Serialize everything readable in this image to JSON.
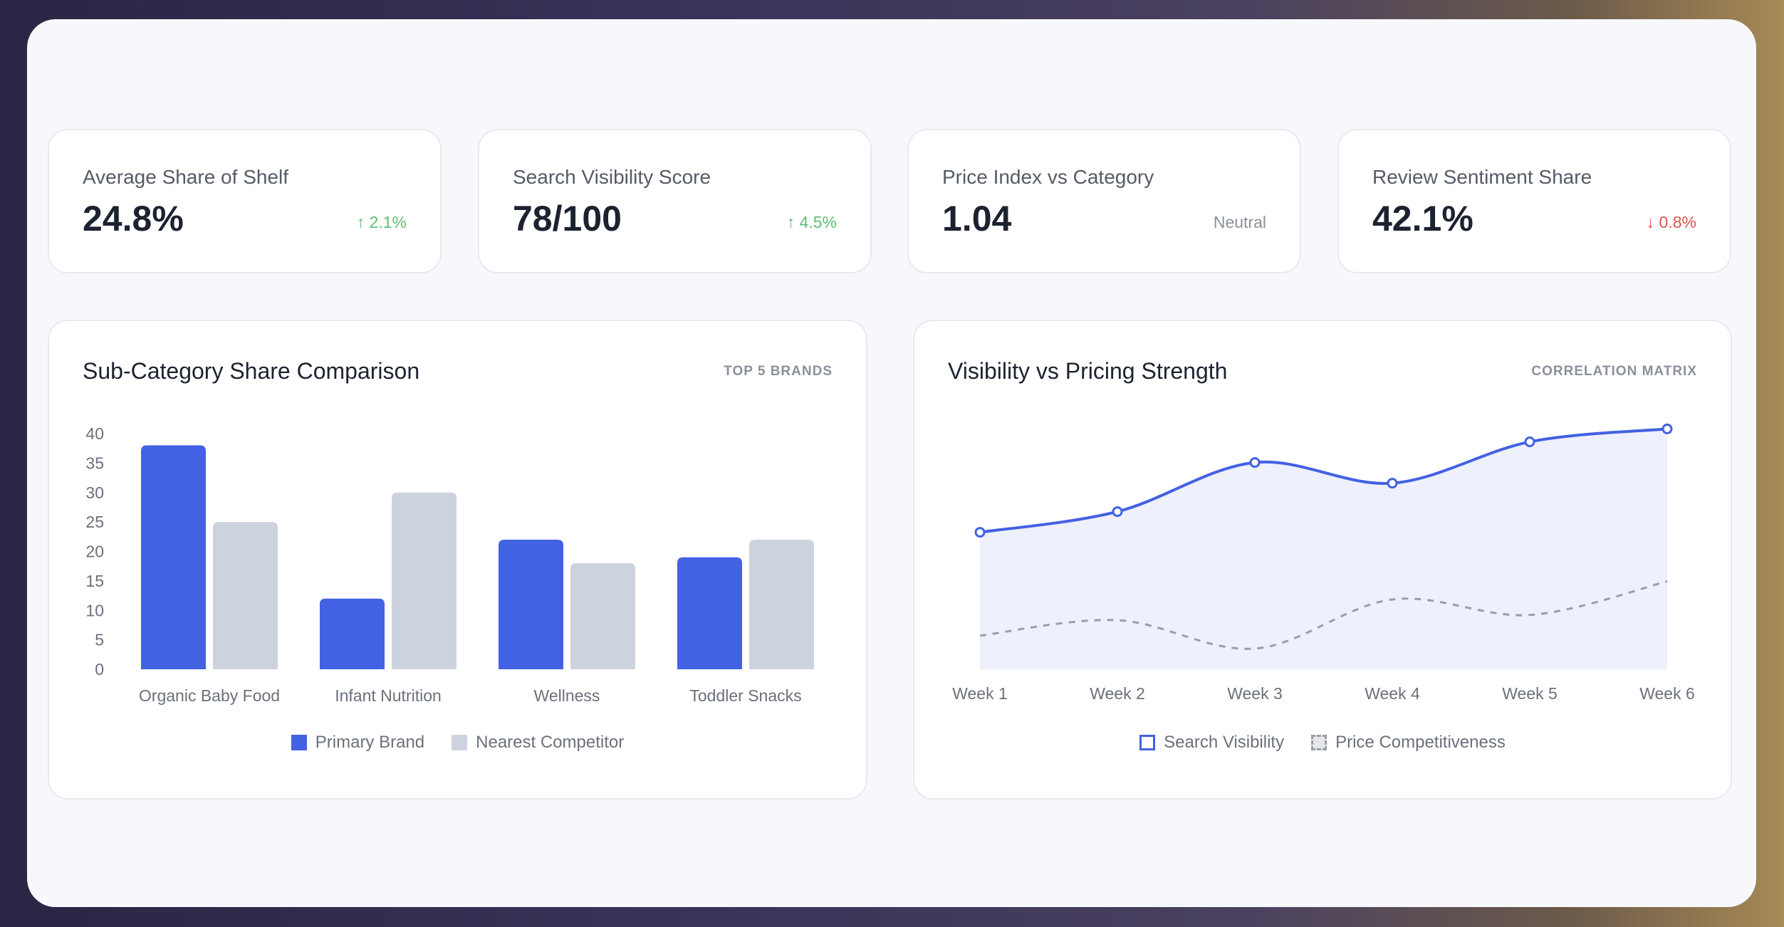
{
  "kpis": [
    {
      "label": "Average Share of Shelf",
      "value": "24.8%",
      "delta": "↑ 2.1%",
      "trend": "up"
    },
    {
      "label": "Search Visibility Score",
      "value": "78/100",
      "delta": "↑ 4.5%",
      "trend": "up"
    },
    {
      "label": "Price Index vs Category",
      "value": "1.04",
      "delta": "Neutral",
      "trend": "neutral"
    },
    {
      "label": "Review Sentiment Share",
      "value": "42.1%",
      "delta": "↓ 0.8%",
      "trend": "down"
    }
  ],
  "colors": {
    "up": "#5cbf72",
    "down": "#d9534f",
    "neutral": "#8b909b",
    "primary": "#4361e3",
    "competitor": "#cdd3de",
    "dashed": "#9a9ea8",
    "area": "#eef0fb"
  },
  "chart_data": [
    {
      "type": "bar",
      "title": "Sub-Category Share Comparison",
      "tag": "TOP 5 BRANDS",
      "categories": [
        "Organic Baby Food",
        "Infant Nutrition",
        "Wellness",
        "Toddler Snacks"
      ],
      "series": [
        {
          "name": "Primary Brand",
          "values": [
            38,
            12,
            22,
            19
          ]
        },
        {
          "name": "Nearest Competitor",
          "values": [
            25,
            30,
            18,
            22
          ]
        }
      ],
      "ylim": [
        0,
        40
      ],
      "yticks": [
        "0",
        "5",
        "10",
        "15",
        "20",
        "25",
        "30",
        "35",
        "40"
      ],
      "legend": "bottom",
      "grid": false
    },
    {
      "type": "line",
      "title": "Visibility vs Pricing Strength",
      "tag": "CORRELATION MATRIX",
      "categories": [
        "Week 1",
        "Week 2",
        "Week 3",
        "Week 4",
        "Week 5",
        "Week 6"
      ],
      "series": [
        {
          "name": "Search Visibility",
          "values": [
            53,
            61,
            80,
            72,
            88,
            93
          ]
        },
        {
          "name": "Price Competitiveness",
          "values": [
            13,
            19,
            8,
            27,
            21,
            34
          ]
        }
      ],
      "ylim": [
        0,
        100
      ],
      "legend": "bottom",
      "grid": false
    }
  ]
}
